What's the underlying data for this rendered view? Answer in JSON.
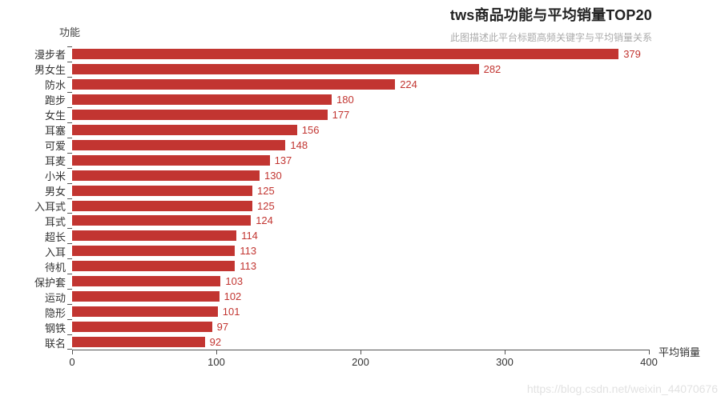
{
  "header": {
    "title": "tws商品功能与平均销量TOP20",
    "subtitle": "此图描述此平台标题高频关键字与平均销量关系"
  },
  "chart_data": {
    "type": "bar",
    "orientation": "horizontal",
    "title": "tws商品功能与平均销量TOP20",
    "subtitle": "此图描述此平台标题高频关键字与平均销量关系",
    "categories": [
      "漫步者",
      "男女生",
      "防水",
      "跑步",
      "女生",
      "耳塞",
      "可爱",
      "耳麦",
      "小米",
      "男女",
      "入耳式",
      "耳式",
      "超长",
      "入耳",
      "待机",
      "保护套",
      "运动",
      "隐形",
      "钢铁",
      "联名"
    ],
    "values": [
      379,
      282,
      224,
      180,
      177,
      156,
      148,
      137,
      130,
      125,
      125,
      124,
      114,
      113,
      113,
      103,
      102,
      101,
      97,
      92
    ],
    "xlabel": "平均销量",
    "ylabel": "功能",
    "xlim": [
      0,
      400
    ],
    "x_ticks": [
      0,
      100,
      200,
      300,
      400
    ],
    "grid": false,
    "legend": false,
    "bar_color": "#c23531",
    "value_label_color": "#c23531"
  },
  "watermark": "https://blog.csdn.net/weixin_44070676"
}
